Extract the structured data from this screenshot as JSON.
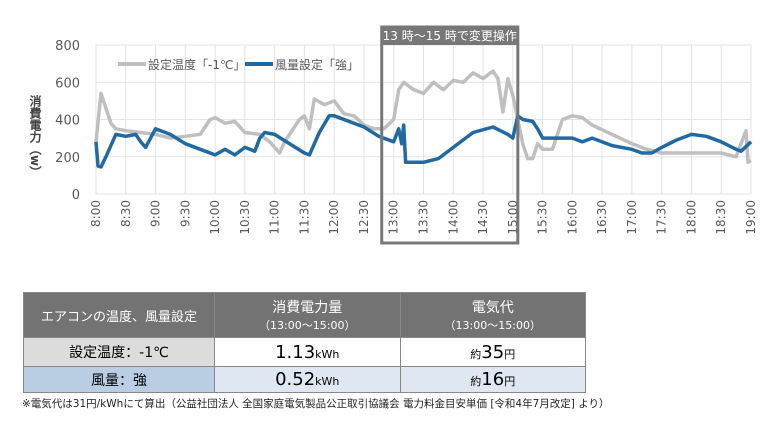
{
  "chart_data": {
    "type": "line",
    "ylabel": "消費電力（w）",
    "ylim": [
      0,
      800
    ],
    "yticks": [
      "0",
      "200",
      "400",
      "600",
      "800"
    ],
    "xticks": [
      "8:00",
      "8:30",
      "9:00",
      "9:30",
      "10:00",
      "10:30",
      "11:00",
      "11:30",
      "12:00",
      "12:30",
      "13:00",
      "13:30",
      "14:00",
      "14:30",
      "15:00",
      "15:30",
      "16:00",
      "16:30",
      "17:00",
      "17:30",
      "18:00",
      "18:30",
      "19:00"
    ],
    "xlim": [
      "8:00",
      "19:00"
    ],
    "grid": true,
    "legend": "top-left",
    "annotation": {
      "label": "13 時～15 時で変更操作",
      "from": "13:00",
      "to": "15:00"
    },
    "series": [
      {
        "name": "設定温度「-1℃」",
        "color": "#bfbfbf",
        "x": [
          "8:00",
          "8:05",
          "8:15",
          "8:20",
          "8:30",
          "8:45",
          "9:00",
          "9:15",
          "9:30",
          "9:45",
          "9:55",
          "10:00",
          "10:10",
          "10:20",
          "10:30",
          "10:45",
          "10:55",
          "11:05",
          "11:10",
          "11:25",
          "11:30",
          "11:35",
          "11:40",
          "11:50",
          "12:00",
          "12:10",
          "12:20",
          "12:30",
          "12:40",
          "12:50",
          "13:00",
          "13:05",
          "13:10",
          "13:20",
          "13:30",
          "13:40",
          "13:50",
          "14:00",
          "14:10",
          "14:20",
          "14:30",
          "14:40",
          "14:45",
          "14:50",
          "14:55",
          "15:00",
          "15:05",
          "15:10",
          "15:15",
          "15:20",
          "15:25",
          "15:30",
          "15:40",
          "15:50",
          "16:00",
          "16:10",
          "16:20",
          "16:40",
          "17:00",
          "17:15",
          "17:30",
          "17:45",
          "18:00",
          "18:30",
          "18:45",
          "18:55",
          "18:57",
          "19:00"
        ],
        "y": [
          280,
          540,
          380,
          350,
          340,
          330,
          320,
          300,
          310,
          320,
          400,
          410,
          380,
          390,
          330,
          320,
          280,
          220,
          280,
          400,
          420,
          350,
          510,
          480,
          500,
          430,
          420,
          370,
          350,
          350,
          400,
          560,
          600,
          560,
          540,
          600,
          560,
          610,
          600,
          650,
          620,
          660,
          620,
          440,
          620,
          530,
          400,
          270,
          190,
          190,
          270,
          240,
          240,
          400,
          420,
          410,
          370,
          320,
          270,
          240,
          220,
          220,
          220,
          220,
          200,
          340,
          170,
          180
        ]
      },
      {
        "name": "風量設定「強」",
        "color": "#1f6aa5",
        "x": [
          "8:00",
          "8:02",
          "8:05",
          "8:10",
          "8:20",
          "8:30",
          "8:40",
          "8:45",
          "8:50",
          "9:00",
          "9:15",
          "9:30",
          "9:50",
          "10:00",
          "10:10",
          "10:20",
          "10:30",
          "10:40",
          "10:45",
          "10:50",
          "11:00",
          "11:30",
          "11:35",
          "11:45",
          "11:55",
          "12:00",
          "12:30",
          "12:45",
          "13:00",
          "13:05",
          "13:08",
          "13:10",
          "13:12",
          "13:30",
          "13:45",
          "14:00",
          "14:20",
          "14:40",
          "14:55",
          "15:00",
          "15:05",
          "15:10",
          "15:20",
          "15:25",
          "15:30",
          "15:45",
          "16:00",
          "16:10",
          "16:20",
          "16:40",
          "17:00",
          "17:10",
          "17:20",
          "17:30",
          "17:45",
          "18:00",
          "18:15",
          "18:30",
          "18:45",
          "18:50",
          "19:00"
        ],
        "y": [
          280,
          150,
          145,
          200,
          320,
          310,
          320,
          280,
          250,
          350,
          320,
          270,
          230,
          210,
          240,
          210,
          250,
          230,
          300,
          330,
          320,
          220,
          210,
          330,
          420,
          420,
          360,
          310,
          280,
          350,
          270,
          370,
          170,
          170,
          190,
          250,
          330,
          360,
          320,
          300,
          420,
          400,
          390,
          350,
          300,
          300,
          300,
          280,
          300,
          260,
          240,
          220,
          220,
          250,
          290,
          320,
          310,
          280,
          240,
          230,
          280
        ]
      }
    ]
  },
  "table": {
    "headers": [
      {
        "main": "エアコンの温度、風量設定"
      },
      {
        "main": "消費電力量",
        "sub": "（13:00～15:00）"
      },
      {
        "main": "電気代",
        "sub": "（13:00～15:00）"
      }
    ],
    "rows": [
      {
        "label": "設定温度：-1℃",
        "energy": "1.13",
        "energy_unit": "kWh",
        "cost_prefix": "約",
        "cost": "35",
        "cost_unit": "円"
      },
      {
        "label": "風量：強",
        "energy": "0.52",
        "energy_unit": "kWh",
        "cost_prefix": "約",
        "cost": "16",
        "cost_unit": "円"
      }
    ]
  },
  "footnote": "※電気代は31円/kWhにて算出（公益社団法人 全国家庭電気製品公正取引協議会 電力料金目安単価 [令和4年7月改定] より）"
}
